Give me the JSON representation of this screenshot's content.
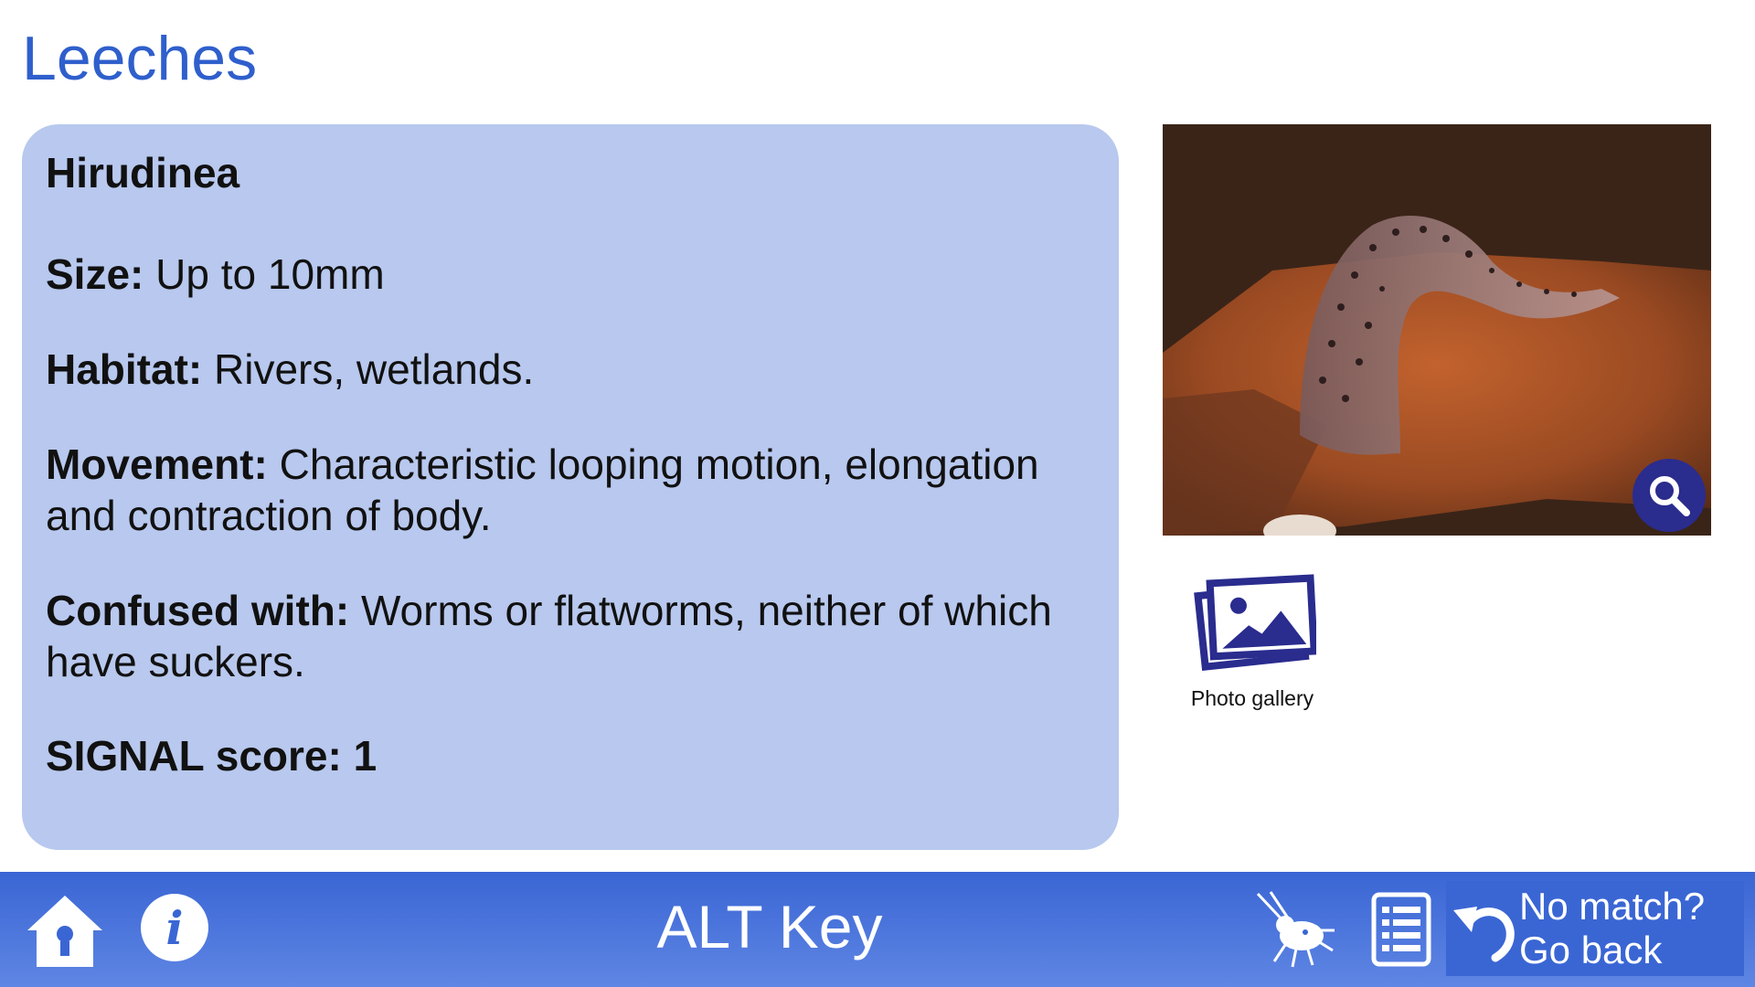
{
  "header": {
    "title": "Leeches"
  },
  "card": {
    "species": "Hirudinea",
    "fields": [
      {
        "label": "Size:",
        "value": "Up to 10mm"
      },
      {
        "label": "Habitat:",
        "value": "Rivers, wetlands."
      },
      {
        "label": "Movement:",
        "value": "Characteristic looping motion, elongation and contraction of body."
      },
      {
        "label": "Confused with:",
        "value": "Worms or flatworms, neither of which have suckers."
      }
    ],
    "signal": "SIGNAL score: 1"
  },
  "gallery": {
    "label": "Photo gallery"
  },
  "footer": {
    "title": "ALT Key",
    "info_glyph": "i",
    "back_line1": "No match?",
    "back_line2": "Go back"
  },
  "icons": {
    "home": "home-icon",
    "info": "info-icon",
    "bug": "macroinvertebrate-icon",
    "list": "list-icon",
    "back": "undo-arrow-icon",
    "zoom": "magnifier-icon",
    "gallery": "photos-icon"
  },
  "colors": {
    "title_blue": "#2f5fcc",
    "card_bg": "#b8c8ee",
    "footer_blue": "#3a66d4",
    "icon_navy": "#2a2c8e"
  }
}
